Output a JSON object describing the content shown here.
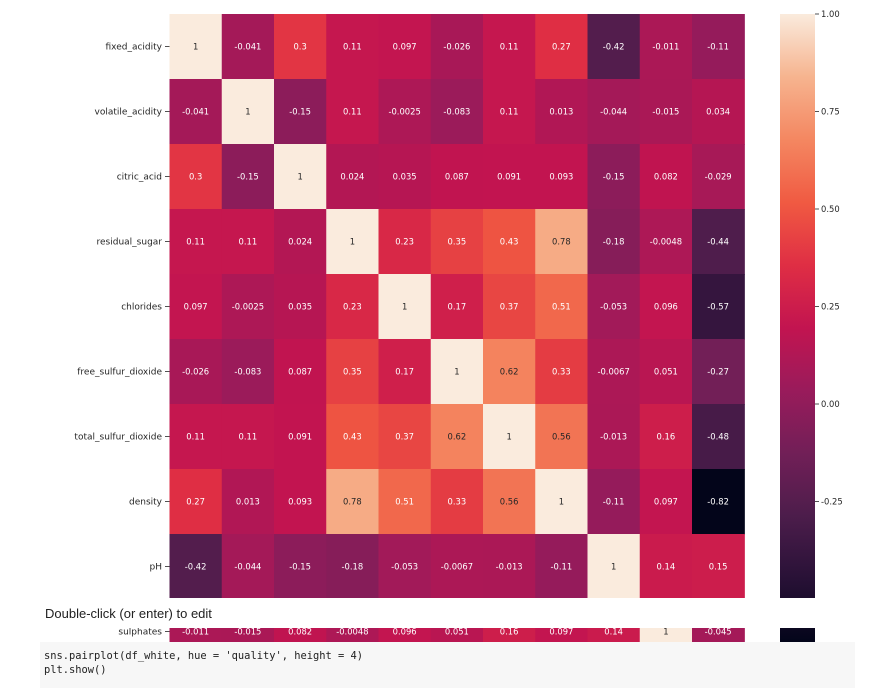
{
  "chart_data": {
    "type": "heatmap",
    "row_labels": [
      "fixed_acidity",
      "volatile_acidity",
      "citric_acid",
      "residual_sugar",
      "chlorides",
      "free_sulfur_dioxide",
      "total_sulfur_dioxide",
      "density",
      "pH",
      "sulphates"
    ],
    "values": [
      [
        "1",
        "-0.041",
        "0.3",
        "0.11",
        "0.097",
        "-0.026",
        "0.11",
        "0.27",
        "-0.42",
        "-0.011",
        "-0.11"
      ],
      [
        "-0.041",
        "1",
        "-0.15",
        "0.11",
        "-0.0025",
        "-0.083",
        "0.11",
        "0.013",
        "-0.044",
        "-0.015",
        "0.034"
      ],
      [
        "0.3",
        "-0.15",
        "1",
        "0.024",
        "0.035",
        "0.087",
        "0.091",
        "0.093",
        "-0.15",
        "0.082",
        "-0.029"
      ],
      [
        "0.11",
        "0.11",
        "0.024",
        "1",
        "0.23",
        "0.35",
        "0.43",
        "0.78",
        "-0.18",
        "-0.0048",
        "-0.44"
      ],
      [
        "0.097",
        "-0.0025",
        "0.035",
        "0.23",
        "1",
        "0.17",
        "0.37",
        "0.51",
        "-0.053",
        "0.096",
        "-0.57"
      ],
      [
        "-0.026",
        "-0.083",
        "0.087",
        "0.35",
        "0.17",
        "1",
        "0.62",
        "0.33",
        "-0.0067",
        "0.051",
        "-0.27"
      ],
      [
        "0.11",
        "0.11",
        "0.091",
        "0.43",
        "0.37",
        "0.62",
        "1",
        "0.56",
        "-0.013",
        "0.16",
        "-0.48"
      ],
      [
        "0.27",
        "0.013",
        "0.093",
        "0.78",
        "0.51",
        "0.33",
        "0.56",
        "1",
        "-0.11",
        "0.097",
        "-0.82"
      ],
      [
        "-0.42",
        "-0.044",
        "-0.15",
        "-0.18",
        "-0.053",
        "-0.0067",
        "-0.013",
        "-0.11",
        "1",
        "0.14",
        "0.15"
      ],
      [
        "-0.011",
        "-0.015",
        "0.082",
        "-0.0048",
        "0.096",
        "0.051",
        "0.16",
        "0.097",
        "0.14",
        "1",
        "-0.045"
      ]
    ],
    "colorbar_ticks": [
      "1.00",
      "0.75",
      "0.50",
      "0.25",
      "0.00",
      "-0.25"
    ],
    "vmin": -0.82,
    "vmax": 1.0,
    "colormap": "rocket"
  },
  "notebook": {
    "edit_prompt": "Double-click (or enter) to edit",
    "code_lines": [
      "sns.pairplot(df_white, hue = 'quality', height = 4)",
      "plt.show()"
    ]
  }
}
